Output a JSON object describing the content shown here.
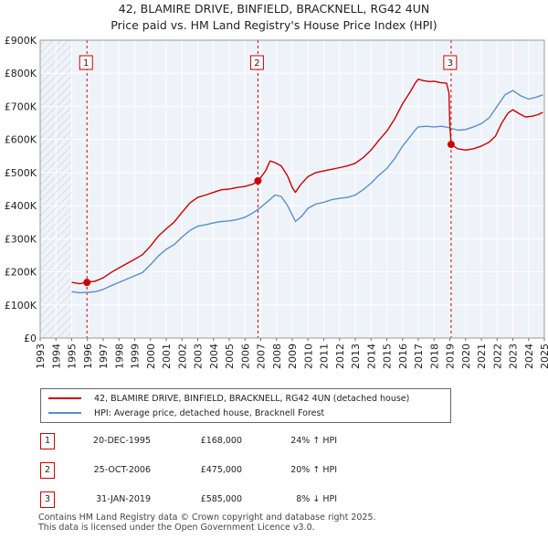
{
  "header": {
    "title_line1": "42, BLAMIRE DRIVE, BINFIELD, BRACKNELL, RG42 4UN",
    "title_line2": "Price paid vs. HM Land Registry's House Price Index (HPI)"
  },
  "chart_data": {
    "type": "line",
    "title": "42, BLAMIRE DRIVE, BINFIELD, BRACKNELL, RG42 4UN",
    "subtitle": "Price paid vs. HM Land Registry's House Price Index (HPI)",
    "xlim": [
      1993,
      2025
    ],
    "ylim": [
      0,
      900000
    ],
    "y_ticks": [
      0,
      100000,
      200000,
      300000,
      400000,
      500000,
      600000,
      700000,
      800000,
      900000
    ],
    "y_tick_labels": [
      "£0",
      "£100K",
      "£200K",
      "£300K",
      "£400K",
      "£500K",
      "£600K",
      "£700K",
      "£800K",
      "£900K"
    ],
    "x_ticks": [
      1993,
      1994,
      1995,
      1996,
      1997,
      1998,
      1999,
      2000,
      2001,
      2002,
      2003,
      2004,
      2005,
      2006,
      2007,
      2008,
      2009,
      2010,
      2011,
      2012,
      2013,
      2014,
      2015,
      2016,
      2017,
      2018,
      2019,
      2020,
      2021,
      2022,
      2023,
      2024,
      2025
    ],
    "x_tick_labels": [
      "1993",
      "1994",
      "1995",
      "1996",
      "1997",
      "1998",
      "1999",
      "2000",
      "2001",
      "2002",
      "2003",
      "2004",
      "2005",
      "2006",
      "2007",
      "2008",
      "2009",
      "2010",
      "2011",
      "2012",
      "2013",
      "2014",
      "2015",
      "2016",
      "2017",
      "2018",
      "2019",
      "2020",
      "2021",
      "2022",
      "2023",
      "2024",
      "2025"
    ],
    "grid": true,
    "hatched_before": 1995.0,
    "series": [
      {
        "name": "42, BLAMIRE DRIVE, BINFIELD, BRACKNELL, RG42 4UN (detached house)",
        "color": "#cc0000",
        "points": [
          [
            1995.0,
            168000
          ],
          [
            1995.5,
            164000
          ],
          [
            1995.97,
            168000
          ],
          [
            1996.5,
            172000
          ],
          [
            1997.0,
            182000
          ],
          [
            1997.5,
            198000
          ],
          [
            1998.0,
            212000
          ],
          [
            1998.5,
            225000
          ],
          [
            1999.0,
            238000
          ],
          [
            1999.5,
            252000
          ],
          [
            2000.0,
            278000
          ],
          [
            2000.5,
            308000
          ],
          [
            2001.0,
            330000
          ],
          [
            2001.5,
            350000
          ],
          [
            2002.0,
            380000
          ],
          [
            2002.5,
            408000
          ],
          [
            2003.0,
            425000
          ],
          [
            2003.5,
            432000
          ],
          [
            2004.0,
            440000
          ],
          [
            2004.5,
            448000
          ],
          [
            2005.0,
            450000
          ],
          [
            2005.5,
            455000
          ],
          [
            2006.0,
            458000
          ],
          [
            2006.5,
            465000
          ],
          [
            2006.82,
            475000
          ],
          [
            2007.0,
            485000
          ],
          [
            2007.3,
            505000
          ],
          [
            2007.6,
            535000
          ],
          [
            2007.9,
            530000
          ],
          [
            2008.3,
            520000
          ],
          [
            2008.7,
            490000
          ],
          [
            2009.0,
            455000
          ],
          [
            2009.2,
            440000
          ],
          [
            2009.5,
            462000
          ],
          [
            2010.0,
            488000
          ],
          [
            2010.5,
            500000
          ],
          [
            2011.0,
            505000
          ],
          [
            2011.5,
            510000
          ],
          [
            2012.0,
            515000
          ],
          [
            2012.5,
            520000
          ],
          [
            2013.0,
            528000
          ],
          [
            2013.5,
            545000
          ],
          [
            2014.0,
            568000
          ],
          [
            2014.5,
            598000
          ],
          [
            2015.0,
            625000
          ],
          [
            2015.5,
            662000
          ],
          [
            2016.0,
            708000
          ],
          [
            2016.5,
            745000
          ],
          [
            2016.8,
            770000
          ],
          [
            2017.0,
            782000
          ],
          [
            2017.3,
            778000
          ],
          [
            2017.7,
            775000
          ],
          [
            2018.0,
            776000
          ],
          [
            2018.4,
            772000
          ],
          [
            2018.8,
            770000
          ],
          [
            2018.95,
            740000
          ],
          [
            2019.0,
            645000
          ],
          [
            2019.08,
            585000
          ],
          [
            2019.5,
            572000
          ],
          [
            2020.0,
            568000
          ],
          [
            2020.5,
            572000
          ],
          [
            2021.0,
            580000
          ],
          [
            2021.5,
            592000
          ],
          [
            2021.9,
            610000
          ],
          [
            2022.3,
            650000
          ],
          [
            2022.7,
            680000
          ],
          [
            2023.0,
            690000
          ],
          [
            2023.4,
            678000
          ],
          [
            2023.8,
            668000
          ],
          [
            2024.2,
            670000
          ],
          [
            2024.6,
            675000
          ],
          [
            2024.9,
            682000
          ]
        ]
      },
      {
        "name": "HPI: Average price, detached house, Bracknell Forest",
        "color": "#5b8fc9",
        "points": [
          [
            1995.0,
            140000
          ],
          [
            1995.5,
            137000
          ],
          [
            1996.0,
            138000
          ],
          [
            1996.5,
            140000
          ],
          [
            1997.0,
            147000
          ],
          [
            1997.5,
            158000
          ],
          [
            1998.0,
            168000
          ],
          [
            1998.5,
            178000
          ],
          [
            1999.0,
            188000
          ],
          [
            1999.5,
            198000
          ],
          [
            2000.0,
            222000
          ],
          [
            2000.5,
            248000
          ],
          [
            2001.0,
            268000
          ],
          [
            2001.5,
            282000
          ],
          [
            2002.0,
            305000
          ],
          [
            2002.5,
            325000
          ],
          [
            2003.0,
            338000
          ],
          [
            2003.5,
            342000
          ],
          [
            2004.0,
            348000
          ],
          [
            2004.5,
            352000
          ],
          [
            2005.0,
            354000
          ],
          [
            2005.5,
            358000
          ],
          [
            2006.0,
            365000
          ],
          [
            2006.5,
            378000
          ],
          [
            2007.0,
            395000
          ],
          [
            2007.5,
            415000
          ],
          [
            2007.9,
            432000
          ],
          [
            2008.3,
            428000
          ],
          [
            2008.7,
            400000
          ],
          [
            2009.0,
            372000
          ],
          [
            2009.2,
            352000
          ],
          [
            2009.6,
            368000
          ],
          [
            2010.0,
            392000
          ],
          [
            2010.5,
            405000
          ],
          [
            2011.0,
            410000
          ],
          [
            2011.5,
            418000
          ],
          [
            2012.0,
            422000
          ],
          [
            2012.5,
            425000
          ],
          [
            2013.0,
            432000
          ],
          [
            2013.5,
            448000
          ],
          [
            2014.0,
            468000
          ],
          [
            2014.5,
            492000
          ],
          [
            2015.0,
            512000
          ],
          [
            2015.5,
            542000
          ],
          [
            2016.0,
            580000
          ],
          [
            2016.5,
            610000
          ],
          [
            2016.8,
            628000
          ],
          [
            2017.0,
            638000
          ],
          [
            2017.5,
            640000
          ],
          [
            2018.0,
            638000
          ],
          [
            2018.5,
            640000
          ],
          [
            2019.0,
            635000
          ],
          [
            2019.5,
            628000
          ],
          [
            2020.0,
            630000
          ],
          [
            2020.5,
            638000
          ],
          [
            2021.0,
            648000
          ],
          [
            2021.5,
            665000
          ],
          [
            2022.0,
            700000
          ],
          [
            2022.5,
            735000
          ],
          [
            2023.0,
            748000
          ],
          [
            2023.5,
            732000
          ],
          [
            2024.0,
            722000
          ],
          [
            2024.5,
            728000
          ],
          [
            2024.9,
            735000
          ]
        ]
      }
    ],
    "markers": [
      {
        "label": "1",
        "x": 1995.97,
        "y": 168000
      },
      {
        "label": "2",
        "x": 2006.82,
        "y": 475000
      },
      {
        "label": "3",
        "x": 2019.08,
        "y": 585000
      }
    ]
  },
  "legend": {
    "property_label": "42, BLAMIRE DRIVE, BINFIELD, BRACKNELL, RG42 4UN (detached house)",
    "hpi_label": "HPI: Average price, detached house, Bracknell Forest",
    "property_color": "#cc0000",
    "hpi_color": "#5b8fc9"
  },
  "sales": [
    {
      "num": "1",
      "date": "20-DEC-1995",
      "price": "£168,000",
      "hpi": "24% ↑ HPI"
    },
    {
      "num": "2",
      "date": "25-OCT-2006",
      "price": "£475,000",
      "hpi": "20% ↑ HPI"
    },
    {
      "num": "3",
      "date": "31-JAN-2019",
      "price": "£585,000",
      "hpi": "8% ↓ HPI"
    }
  ],
  "footer": {
    "line1": "Contains HM Land Registry data © Crown copyright and database right 2025.",
    "line2": "This data is licensed under the Open Government Licence v3.0."
  }
}
